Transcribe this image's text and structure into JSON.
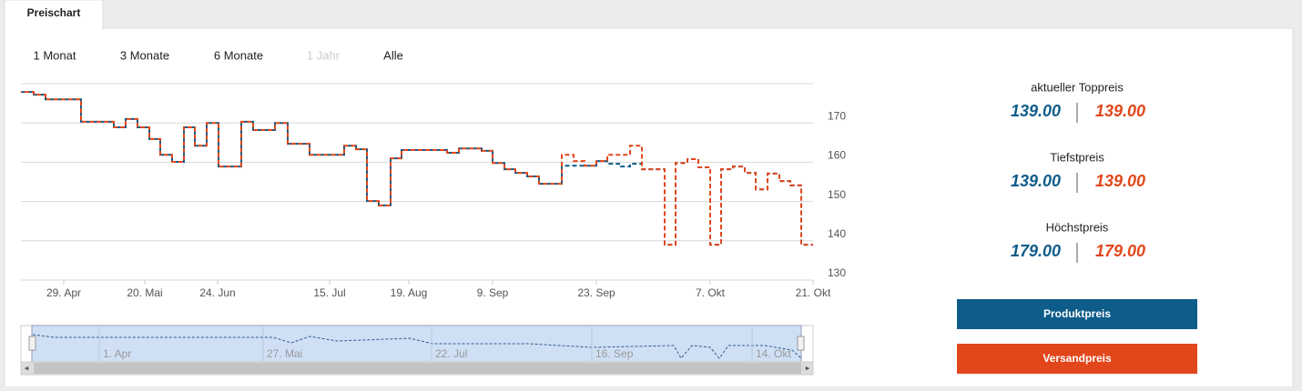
{
  "tabs": [
    "Preischart"
  ],
  "ranges": [
    {
      "label": "1 Monat",
      "enabled": true
    },
    {
      "label": "3 Monate",
      "enabled": true
    },
    {
      "label": "6 Monate",
      "enabled": true
    },
    {
      "label": "1 Jahr",
      "enabled": false
    },
    {
      "label": "Alle",
      "enabled": true
    }
  ],
  "chart_data": {
    "type": "line",
    "step": true,
    "grid": true,
    "x": [
      0,
      1.4,
      2.7,
      6.6,
      10.2,
      11.5,
      12.8,
      14.1,
      15.3,
      16.6,
      17.9,
      19.1,
      20.4,
      21.7,
      24.2,
      25.5,
      27.9,
      29.3,
      31.7,
      35.5,
      36.8,
      38,
      39.3,
      40.6,
      41.8,
      46.8,
      48.1,
      50.6,
      51.8,
      53.1,
      54.3,
      55.6,
      56.9,
      59.4,
      60.7,
      61.9,
      63.2,
      64.4,
      65.7,
      66.9,
      68.2,
      70.7,
      71.9,
      73.2,
      74.4,
      75.7,
      76.9,
      78.2,
      79.5,
      80.7,
      82,
      83.3,
      84.5,
      85.7
    ],
    "series": [
      {
        "name": "Produktpreis",
        "color": "#0e5c8a",
        "values": [
          177.9,
          177.2,
          176,
          170.3,
          168.9,
          171,
          168.9,
          165.9,
          161.9,
          160.1,
          168.9,
          164.2,
          170,
          158.9,
          170.3,
          168.2,
          170,
          164.7,
          161.9,
          164.2,
          163.3,
          150.1,
          149,
          161,
          163.1,
          162.4,
          163.5,
          162.9,
          159.8,
          158.2,
          157.3,
          156.4,
          154.5,
          159.1,
          159.1,
          159.1,
          160.3,
          159.6,
          158.9,
          159.6,
          158.2,
          139,
          159.8,
          160.8,
          158.7,
          139,
          158.2,
          158.9,
          157.3,
          153.1,
          157.1,
          155.2,
          154.1,
          139
        ]
      },
      {
        "name": "Versandpreis",
        "color": "#e2471b",
        "values": [
          177.9,
          177.2,
          176,
          170.3,
          168.9,
          171,
          168.9,
          165.9,
          161.9,
          160.1,
          168.9,
          164.2,
          170,
          158.9,
          170.3,
          168.2,
          170,
          164.7,
          161.9,
          164.2,
          163.3,
          150.1,
          149,
          161,
          163.1,
          162.4,
          163.5,
          162.9,
          159.8,
          158.2,
          157.3,
          156.4,
          154.5,
          161.9,
          160.3,
          159.1,
          160.3,
          161.9,
          161.9,
          164.2,
          158.2,
          139,
          159.8,
          160.8,
          158.7,
          139,
          158.2,
          158.9,
          157.3,
          153.1,
          157.1,
          155.2,
          154.1,
          139
        ]
      }
    ],
    "xlim": [
      0,
      87
    ],
    "ylim": [
      130,
      180
    ],
    "yticks": [
      130,
      140,
      150,
      160,
      170
    ],
    "xticks": [
      {
        "value": 4.7,
        "label": "29. Apr"
      },
      {
        "value": 13.6,
        "label": "20. Mai"
      },
      {
        "value": 21.6,
        "label": "24. Jun"
      },
      {
        "value": 33.9,
        "label": "15. Jul"
      },
      {
        "value": 42.6,
        "label": "19. Aug"
      },
      {
        "value": 51.8,
        "label": "9. Sep"
      },
      {
        "value": 63.2,
        "label": "23. Sep"
      },
      {
        "value": 75.7,
        "label": "7. Okt"
      },
      {
        "value": 87,
        "label": "21. Okt"
      }
    ]
  },
  "navigator": {
    "labels": [
      "1. Apr",
      "27. Mai",
      "22. Jul",
      "16. Sep",
      "14. Okt"
    ]
  },
  "stats": [
    {
      "label": "aktueller Toppreis",
      "values": [
        "139.00",
        "139.00"
      ]
    },
    {
      "label": "Tiefstpreis",
      "values": [
        "139.00",
        "139.00"
      ]
    },
    {
      "label": "Höchstpreis",
      "values": [
        "179.00",
        "179.00"
      ]
    }
  ]
}
